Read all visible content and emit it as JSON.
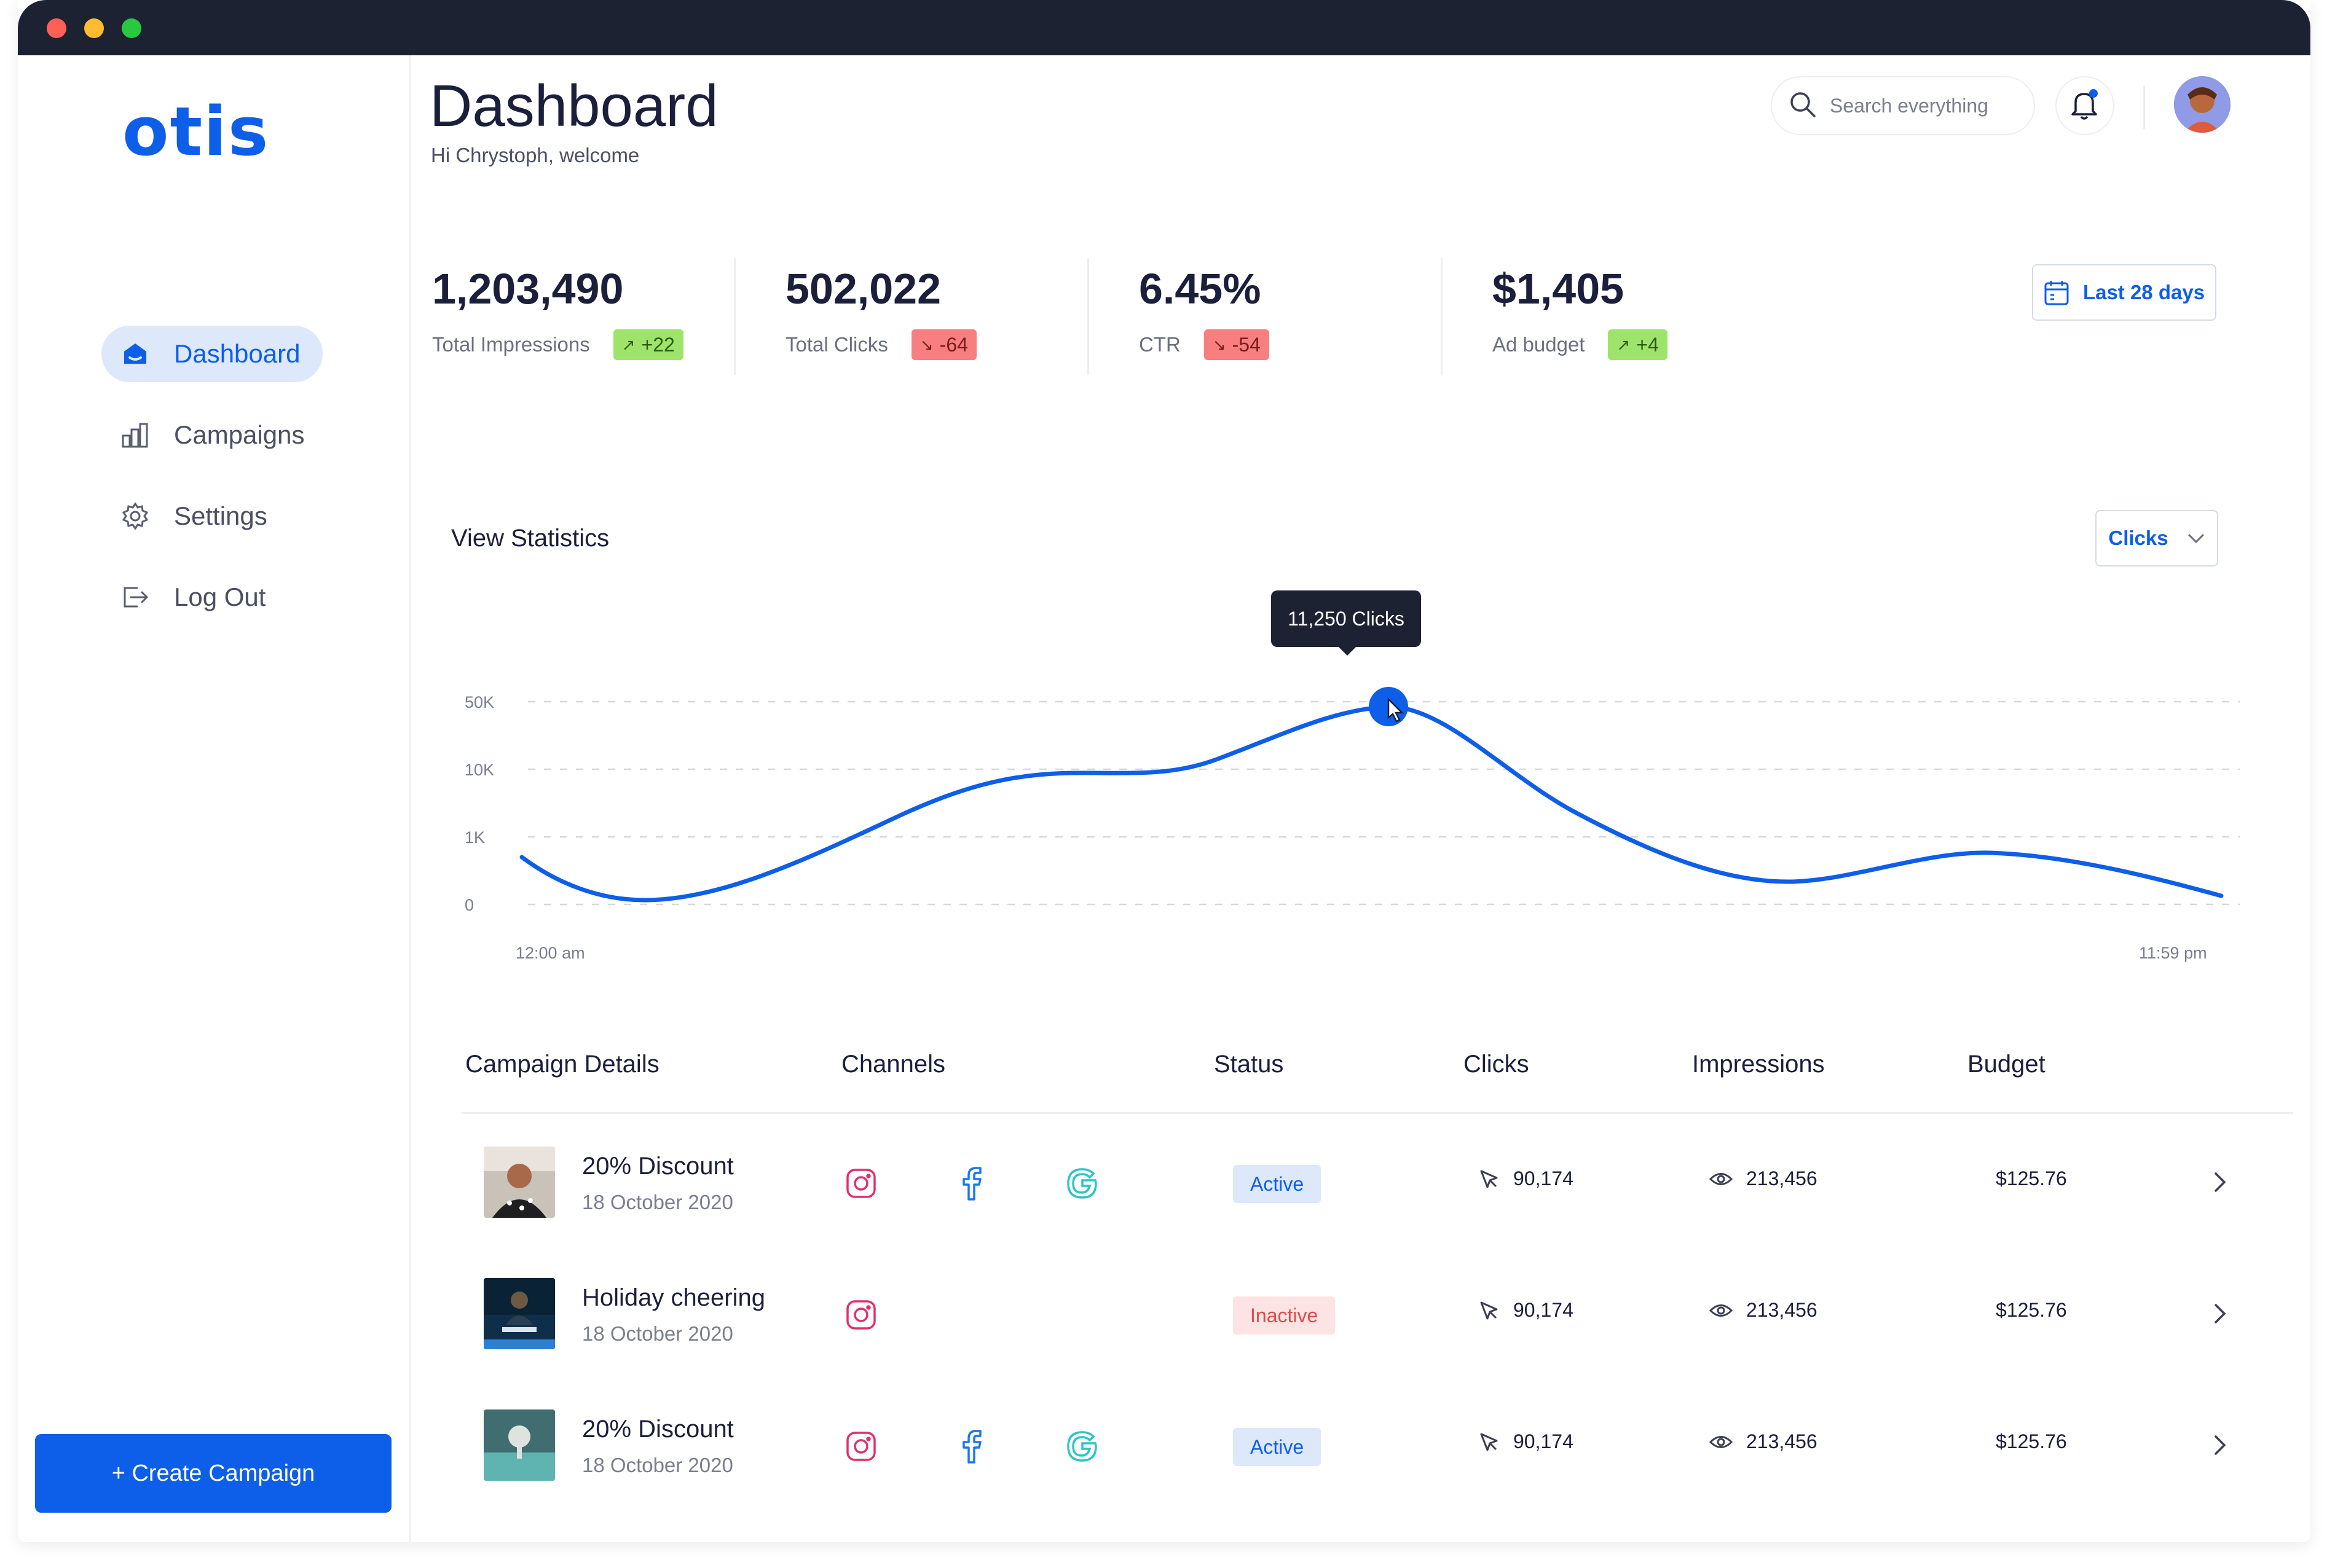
{
  "app": {
    "logo": "otis"
  },
  "sidebar": {
    "items": [
      {
        "label": "Dashboard",
        "icon": "home-icon",
        "active": true
      },
      {
        "label": "Campaigns",
        "icon": "bar-chart-icon",
        "active": false
      },
      {
        "label": "Settings",
        "icon": "gear-icon",
        "active": false
      },
      {
        "label": "Log Out",
        "icon": "logout-icon",
        "active": false
      }
    ],
    "create_label": "+ Create Campaign"
  },
  "header": {
    "title": "Dashboard",
    "subtitle": "Hi Chrystoph, welcome",
    "search_placeholder": "Search everything"
  },
  "stats": [
    {
      "value": "1,203,490",
      "label": "Total Impressions",
      "delta": "+22",
      "trend": "up"
    },
    {
      "value": "502,022",
      "label": "Total Clicks",
      "delta": "-64",
      "trend": "down"
    },
    {
      "value": "6.45%",
      "label": "CTR",
      "delta": "-54",
      "trend": "down"
    },
    {
      "value": "$1,405",
      "label": "Ad budget",
      "delta": "+4",
      "trend": "up"
    }
  ],
  "range_label": "Last 28 days",
  "statistics": {
    "title": "View Statistics",
    "metric": "Clicks",
    "tooltip": "11,250 Clicks",
    "y_ticks": [
      "50K",
      "10K",
      "1K",
      "0"
    ],
    "x_start": "12:00 am",
    "x_end": "11:59 pm"
  },
  "table": {
    "headers": [
      "Campaign Details",
      "Channels",
      "Status",
      "Clicks",
      "Impressions",
      "Budget"
    ],
    "rows": [
      {
        "title": "20% Discount",
        "date": "18 October 2020",
        "channels": [
          "instagram",
          "facebook",
          "google"
        ],
        "status": "Active",
        "clicks": "90,174",
        "impressions": "213,456",
        "budget": "$125.76"
      },
      {
        "title": "Holiday cheering",
        "date": "18 October 2020",
        "channels": [
          "instagram"
        ],
        "status": "Inactive",
        "clicks": "90,174",
        "impressions": "213,456",
        "budget": "$125.76"
      },
      {
        "title": "20% Discount",
        "date": "18 October 2020",
        "channels": [
          "instagram",
          "facebook",
          "google"
        ],
        "status": "Active",
        "clicks": "90,174",
        "impressions": "213,456",
        "budget": "$125.76"
      }
    ]
  },
  "colors": {
    "accent": "#0d5ee8",
    "up": "#9ee46a",
    "down": "#f77f7f",
    "titlebar": "#1d2233"
  }
}
